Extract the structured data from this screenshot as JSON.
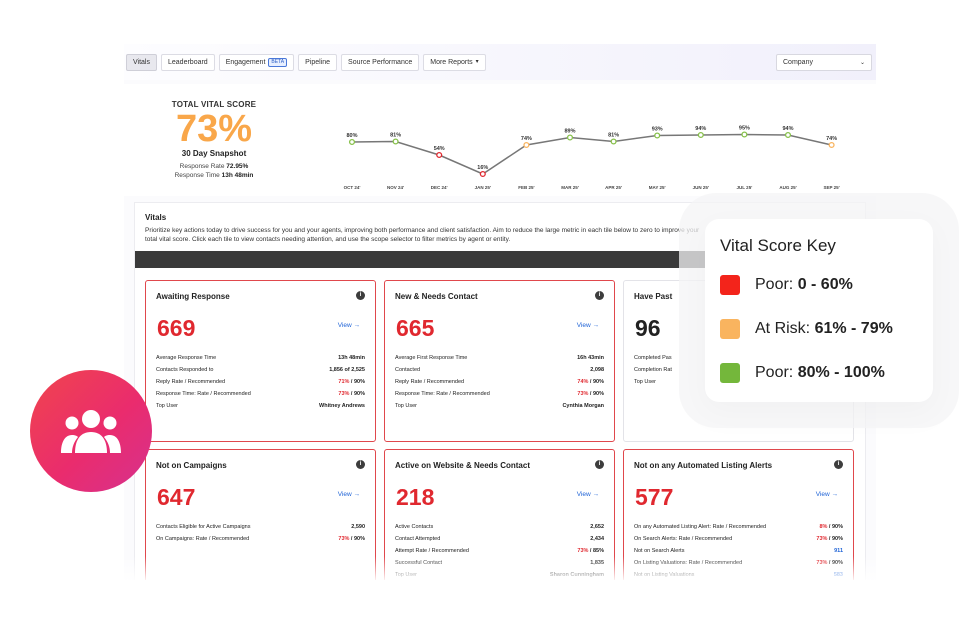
{
  "nav": {
    "tabs": [
      {
        "label": "Vitals"
      },
      {
        "label": "Leaderboard"
      },
      {
        "label": "Engagement",
        "badge": "BETA"
      },
      {
        "label": "Pipeline"
      },
      {
        "label": "Source Performance"
      },
      {
        "label": "More Reports"
      }
    ],
    "scope": "Company"
  },
  "summary": {
    "title": "TOTAL VITAL SCORE",
    "score": "73%",
    "subtitle": "30 Day Snapshot",
    "response_rate_label": "Response Rate",
    "response_rate": "72.95%",
    "response_time_label": "Response Time",
    "response_time": "13h 48min"
  },
  "chart_data": {
    "type": "line",
    "categories": [
      "OCT 24'",
      "NOV 24'",
      "DEC 24'",
      "JAN 25'",
      "FEB 25'",
      "MAR 25'",
      "APR 25'",
      "MAY 25'",
      "JUN 25'",
      "JUL 25'",
      "AUG 25'",
      "SEP 25'"
    ],
    "values": [
      80,
      81,
      54,
      16,
      74,
      89,
      81,
      93,
      94,
      95,
      94,
      74
    ],
    "labels": [
      "80%",
      "81%",
      "54%",
      "16%",
      "74%",
      "89%",
      "81%",
      "93%",
      "94%",
      "95%",
      "94%",
      "74%"
    ],
    "ylim": [
      0,
      100
    ],
    "line_color": "#777777",
    "thresholds": {
      "poor_color": "#e0282f",
      "risk_color": "#f9b45f",
      "good_color": "#86c049"
    }
  },
  "vitals": {
    "title": "Vitals",
    "description": "Prioritize key actions today to drive success for you and your agents, improving both performance and client satisfaction. Aim to reduce the large metric in each tile below to zero to improve your total vital score. Click each tile to view contacts needing attention, and use the scope selector to filter metrics by agent or entity.",
    "view_label": "View →"
  },
  "tiles": [
    {
      "title": "Awaiting Response",
      "value": "669",
      "rows": [
        {
          "label": "Average Response Time",
          "value": "13h 48min"
        },
        {
          "label": "Contacts Responded to",
          "value": "1,856 of 2,525"
        },
        {
          "label": "Reply Rate / Recommended",
          "value_hl": "71%",
          "value_rest": " / 90%"
        },
        {
          "label": "Response Time: Rate / Recommended",
          "value_hl": "73%",
          "value_rest": " / 90%"
        },
        {
          "label": "Top User",
          "value": "Whitney Andrews"
        }
      ]
    },
    {
      "title": "New & Needs Contact",
      "value": "665",
      "rows": [
        {
          "label": "Average First Response Time",
          "value": "16h 43min"
        },
        {
          "label": "Contacted",
          "value": "2,098"
        },
        {
          "label": "Reply Rate / Recommended",
          "value_hl": "74%",
          "value_rest": " / 90%"
        },
        {
          "label": "Response Time: Rate / Recommended",
          "value_hl": "73%",
          "value_rest": " / 90%"
        },
        {
          "label": "Top User",
          "value": "Cynthia Morgan"
        }
      ]
    },
    {
      "title": "Have Past",
      "value": "96",
      "rows": [
        {
          "label": "Completed Pas"
        },
        {
          "label": "Completion Rat"
        },
        {
          "label": "Top User"
        }
      ]
    },
    {
      "title": "Not on Campaigns",
      "value": "647",
      "rows": [
        {
          "label": "Contacts Eligible for Active Campaigns",
          "value": "2,590"
        },
        {
          "label": "On Campaigns: Rate / Recommended",
          "value_hl": "73%",
          "value_rest": " / 90%"
        }
      ]
    },
    {
      "title": "Active on Website & Needs Contact",
      "value": "218",
      "rows": [
        {
          "label": "Active Contacts",
          "value": "2,652"
        },
        {
          "label": "Contact Attempted",
          "value": "2,434"
        },
        {
          "label": "Attempt Rate / Recommended",
          "value_hl": "73%",
          "value_rest": " / 85%"
        },
        {
          "label": "Successful Contact",
          "value": "1,835"
        },
        {
          "label": "Top User",
          "value": "Sharon Cunningham"
        }
      ]
    },
    {
      "title": "Not on any Automated Listing Alerts",
      "value": "577",
      "rows": [
        {
          "label": "On any Automated Listing Alert: Rate / Recommended",
          "value_hl": "8%",
          "value_rest": " / 90%"
        },
        {
          "label": "On Search Alerts: Rate / Recommended",
          "value_hl": "73%",
          "value_rest": " / 90%"
        },
        {
          "label": "Not on Search Alerts",
          "value_blue": "911"
        },
        {
          "label": "On Listing Valuations: Rate / Recommended",
          "value_hl": "73%",
          "value_rest": " / 90%"
        },
        {
          "label": "Not on Listing Valuations",
          "value_blue": "583"
        }
      ]
    }
  ],
  "key": {
    "title": "Vital Score Key",
    "items": [
      {
        "prefix": "Poor: ",
        "range": "0 - 60%",
        "color": "#f3241b"
      },
      {
        "prefix": "At Risk: ",
        "range": "61% - 79%",
        "color": "#f9b45f"
      },
      {
        "prefix": "Poor: ",
        "range": "80% - 100%",
        "color": "#74b73b"
      }
    ]
  }
}
